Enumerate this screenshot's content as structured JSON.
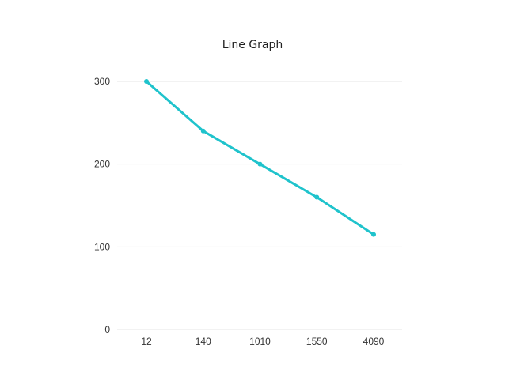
{
  "chart_data": {
    "type": "line",
    "title": "Line Graph",
    "xlabel": "",
    "ylabel": "",
    "categories": [
      "12",
      "140",
      "1010",
      "1550",
      "4090"
    ],
    "series": [
      {
        "values": [
          300,
          240,
          200,
          160,
          115
        ],
        "color": "#1fc3cc"
      }
    ],
    "ylim": [
      0,
      300
    ],
    "yticks": [
      0,
      100,
      200,
      300
    ],
    "grid": true,
    "legend": "none"
  }
}
